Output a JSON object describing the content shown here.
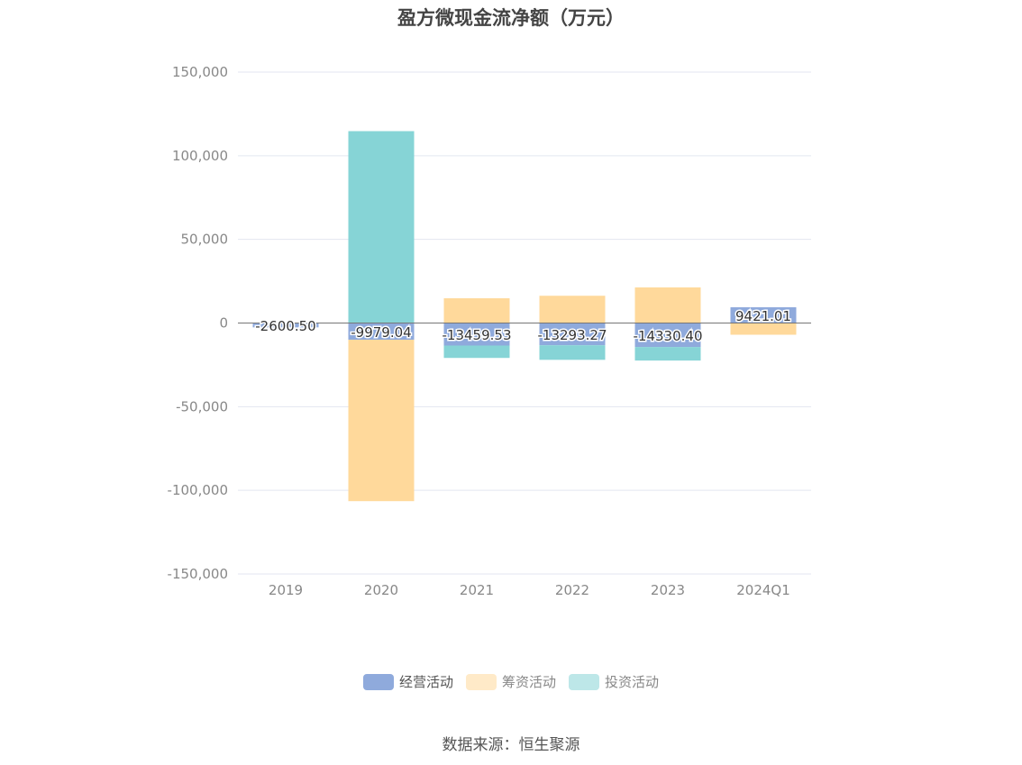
{
  "title": "盈方微现金流净额（万元）",
  "source": "数据来源：恒生聚源",
  "chart_data": {
    "type": "bar",
    "stacked": true,
    "title": "盈方微现金流净额（万元）",
    "xlabel": "",
    "ylabel": "",
    "categories": [
      "2019",
      "2020",
      "2021",
      "2022",
      "2023",
      "2024Q1"
    ],
    "ylim": [
      -150000,
      150000
    ],
    "yticks": [
      150000,
      100000,
      50000,
      0,
      -50000,
      -100000,
      -150000
    ],
    "ytick_labels": [
      "150,000",
      "100,000",
      "50,000",
      "0",
      "-50,000",
      "-100,000",
      "-150,000"
    ],
    "grid": true,
    "legend_position": "bottom",
    "series": [
      {
        "name": "经营活动",
        "color": "#8faadc",
        "values": [
          -2600.5,
          -9979.04,
          -13459.53,
          -13293.27,
          -14330.4,
          9421.01
        ],
        "data_labels": [
          "-2600.50",
          "-9979.04",
          "-13459.53",
          "-13293.27",
          "-14330.40",
          "9421.01"
        ]
      },
      {
        "name": "筹资活动",
        "color": "#ffd99b",
        "values": [
          0,
          -96500,
          14800,
          16300,
          21300,
          -7000
        ]
      },
      {
        "name": "投资活动",
        "color": "#86d4d6",
        "values": [
          0,
          114700,
          -7400,
          -8700,
          -8100,
          0
        ]
      }
    ]
  }
}
